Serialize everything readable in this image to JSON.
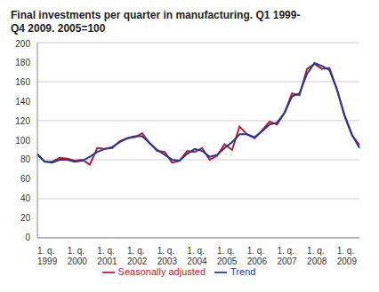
{
  "chart_data": {
    "type": "line",
    "title": "Final investments per quarter in manufacturing. Q1 1999-Q4 2009. 2005=100",
    "categories": [
      "1. q. 1999",
      null,
      null,
      null,
      "1. q. 2000",
      null,
      null,
      null,
      "1. q. 2001",
      null,
      null,
      null,
      "1. q. 2002",
      null,
      null,
      null,
      "1. q. 2003",
      null,
      null,
      null,
      "1. q. 2004",
      null,
      null,
      null,
      "1. q. 2005",
      null,
      null,
      null,
      "1. q. 2006",
      null,
      null,
      null,
      "1. q. 2007",
      null,
      null,
      null,
      "1. q. 2008",
      null,
      null,
      null,
      "1. q. 2009",
      null,
      null,
      null
    ],
    "series": [
      {
        "name": "Seasonally adjusted",
        "color": "#c0182f",
        "values": [
          85,
          78,
          78,
          82,
          81,
          79,
          80,
          75,
          92,
          91,
          92,
          99,
          102,
          103,
          107,
          97,
          89,
          88,
          77,
          79,
          89,
          88,
          92,
          80,
          84,
          96,
          90,
          114,
          106,
          102,
          110,
          119,
          116,
          128,
          148,
          146,
          173,
          178,
          173,
          174,
          152,
          125,
          105,
          95
        ]
      },
      {
        "name": "Trend",
        "color": "#1f3c99",
        "values": [
          86,
          78,
          77,
          80,
          80,
          78,
          79,
          83,
          88,
          91,
          93,
          98,
          102,
          104,
          104,
          97,
          90,
          85,
          80,
          79,
          86,
          91,
          89,
          83,
          85,
          92,
          98,
          106,
          106,
          103,
          109,
          116,
          118,
          128,
          145,
          148,
          168,
          179,
          176,
          172,
          152,
          126,
          106,
          92
        ]
      }
    ],
    "ylim": [
      0,
      200
    ],
    "yticks": [
      0,
      20,
      40,
      60,
      80,
      100,
      120,
      140,
      160,
      180,
      200
    ],
    "grid": true,
    "legend": "bottom"
  }
}
